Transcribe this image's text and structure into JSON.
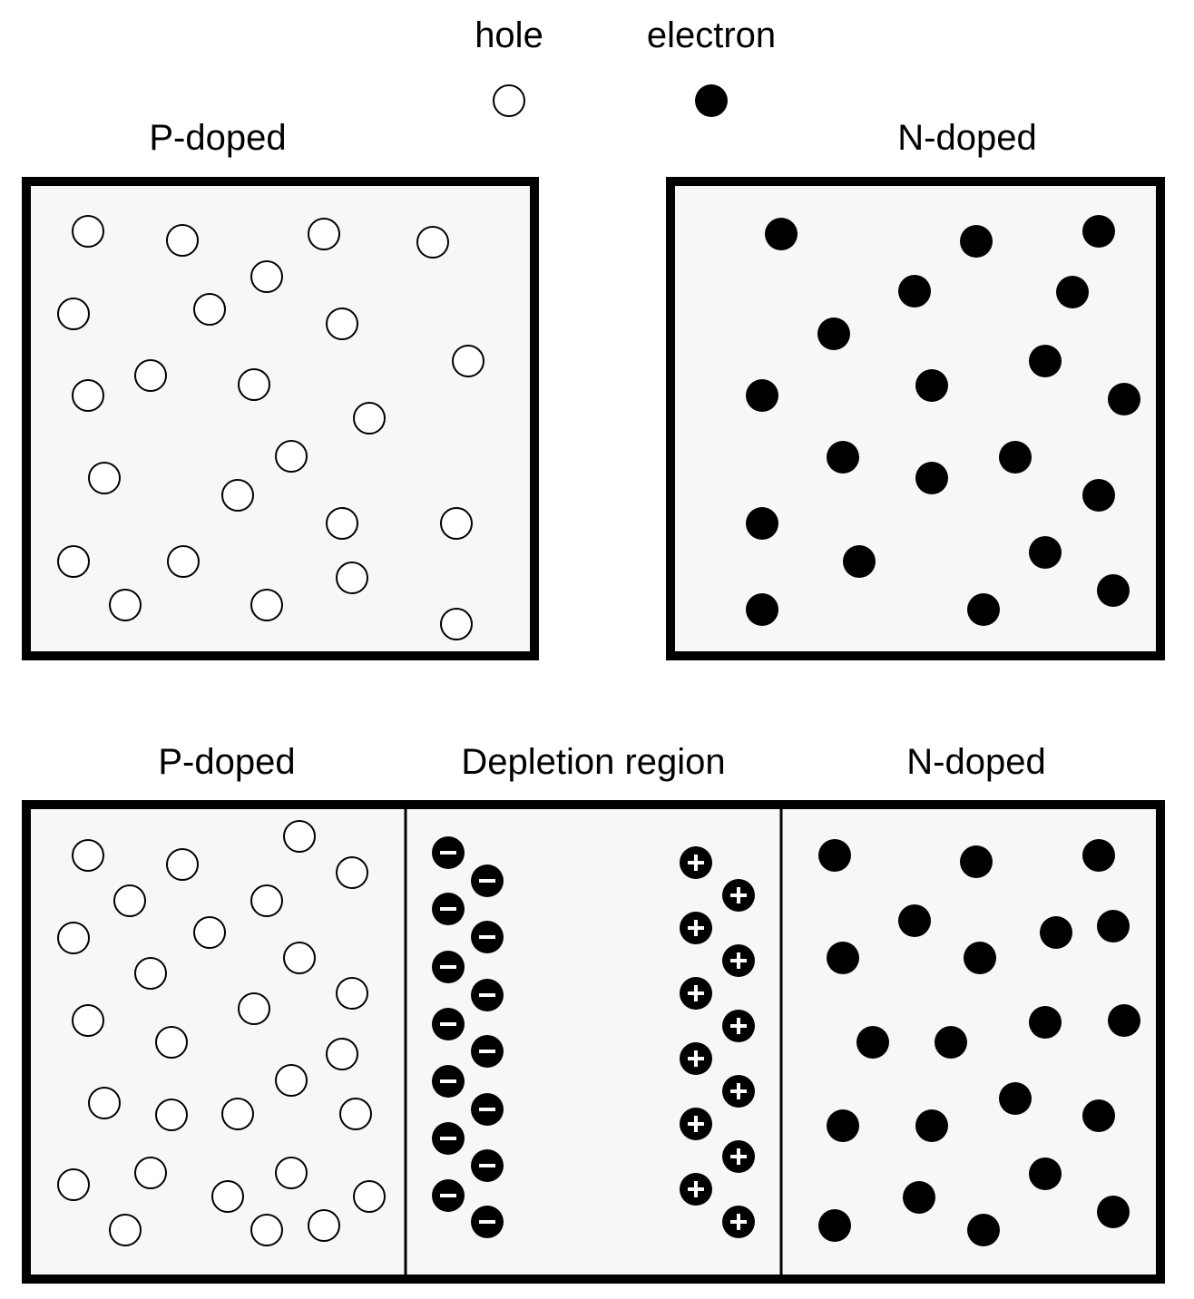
{
  "legend": {
    "hole_label": "hole",
    "electron_label": "electron"
  },
  "top": {
    "p_label": "P-doped",
    "n_label": "N-doped"
  },
  "bottom": {
    "p_label": "P-doped",
    "depletion_label": "Depletion region",
    "n_label": "N-doped"
  },
  "colors": {
    "panel_fill": "#f7f7f7",
    "stroke": "#000000",
    "hole_fill": "#ffffff",
    "electron_fill": "#000000"
  }
}
